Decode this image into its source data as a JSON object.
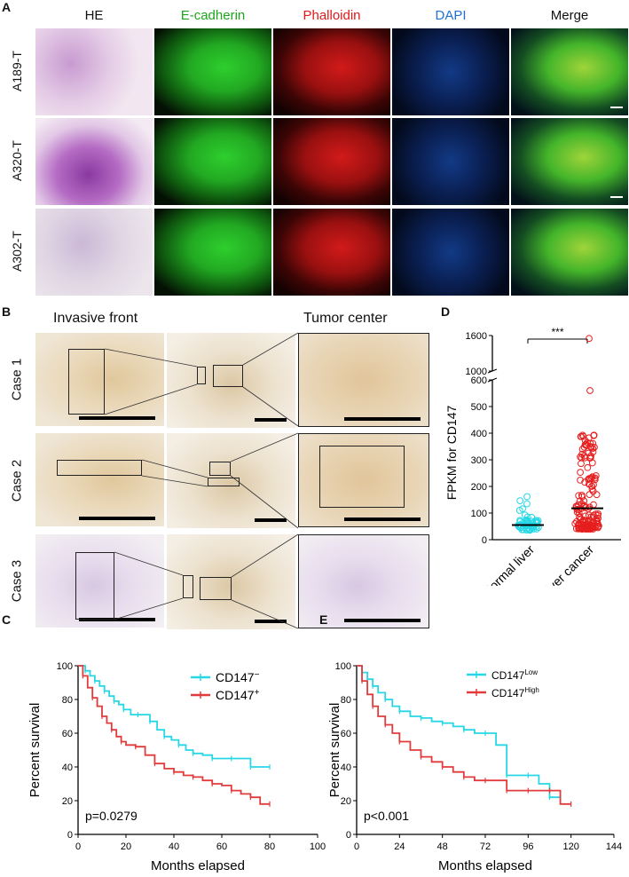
{
  "panels": {
    "A": "A",
    "B": "B",
    "C": "C",
    "D": "D",
    "E": "E"
  },
  "panelA": {
    "headers": [
      {
        "text": "HE",
        "color": "#111111"
      },
      {
        "text": "E-cadherin",
        "color": "#1aa51a"
      },
      {
        "text": "Phalloidin",
        "color": "#e01919"
      },
      {
        "text": "DAPI",
        "color": "#1f6fd6"
      },
      {
        "text": "Merge",
        "color": "#111111"
      }
    ],
    "rows": [
      "A189-T",
      "A320-T",
      "A302-T"
    ]
  },
  "panelB": {
    "col_invasive": "Invasive front",
    "col_center": "Tumor center",
    "rows": [
      "Case 1",
      "Case 2",
      "Case 3"
    ]
  },
  "chart_data": [
    {
      "panel": "D",
      "type": "scatter",
      "ylabel": "FPKM for CD147",
      "categories": [
        "Normal liver",
        "Liver cancer"
      ],
      "y_ticks_lower": [
        0,
        100,
        200,
        300,
        400,
        500,
        600
      ],
      "y_ticks_upper": [
        1000,
        1600
      ],
      "significance": "***",
      "series": [
        {
          "name": "Normal liver",
          "color": "#27d7e6",
          "median": 55,
          "range": [
            30,
            185
          ]
        },
        {
          "name": "Liver cancer",
          "color": "#e61e1e",
          "median": 118,
          "range": [
            20,
            1550
          ]
        }
      ]
    },
    {
      "panel": "C",
      "type": "line",
      "xlabel": "Months elapsed",
      "ylabel": "Percent survival",
      "xlim": [
        0,
        100
      ],
      "ylim": [
        0,
        100
      ],
      "x_ticks": [
        0,
        20,
        40,
        60,
        80,
        100
      ],
      "y_ticks": [
        0,
        20,
        40,
        60,
        80,
        100
      ],
      "annotation": "p=0.0279",
      "series": [
        {
          "name": "CD147",
          "sup": "−",
          "color": "#27d7e6",
          "x": [
            0,
            3,
            5,
            7,
            9,
            11,
            13,
            15,
            17,
            19,
            22,
            25,
            27,
            30,
            33,
            36,
            39,
            42,
            45,
            48,
            52,
            56,
            60,
            64,
            68,
            72,
            76,
            80
          ],
          "y": [
            100,
            97,
            94,
            91,
            88,
            85,
            82,
            79,
            77,
            74,
            71,
            71,
            71,
            67,
            62,
            58,
            56,
            53,
            50,
            48,
            47,
            45,
            45,
            45,
            45,
            40,
            40,
            40
          ]
        },
        {
          "name": "CD147",
          "sup": "+",
          "color": "#e23b3b",
          "x": [
            0,
            2,
            4,
            6,
            8,
            10,
            12,
            14,
            16,
            18,
            20,
            24,
            28,
            32,
            36,
            40,
            44,
            48,
            52,
            56,
            60,
            64,
            68,
            72,
            76,
            80
          ],
          "y": [
            100,
            94,
            87,
            81,
            76,
            70,
            66,
            62,
            58,
            55,
            53,
            52,
            47,
            42,
            39,
            37,
            35,
            34,
            32,
            30,
            29,
            26,
            24,
            22,
            18,
            18
          ]
        }
      ]
    },
    {
      "panel": "E",
      "type": "line",
      "xlabel": "Months elapsed",
      "ylabel": "Percent survival",
      "xlim": [
        0,
        144
      ],
      "ylim": [
        0,
        100
      ],
      "x_ticks": [
        0,
        24,
        48,
        72,
        96,
        120,
        144
      ],
      "y_ticks": [
        0,
        20,
        40,
        60,
        80,
        100
      ],
      "annotation": "p<0.001",
      "series": [
        {
          "name": "CD147",
          "sup": "Low",
          "color": "#27d7e6",
          "x": [
            0,
            3,
            6,
            9,
            12,
            16,
            20,
            24,
            30,
            36,
            42,
            48,
            54,
            60,
            66,
            72,
            78,
            84,
            90,
            96,
            102,
            108,
            114
          ],
          "y": [
            100,
            96,
            92,
            88,
            84,
            80,
            76,
            73,
            70,
            69,
            67,
            66,
            64,
            62,
            60,
            60,
            53,
            35,
            35,
            35,
            30,
            22,
            22
          ]
        },
        {
          "name": "CD147",
          "sup": "High",
          "color": "#e23b3b",
          "x": [
            0,
            3,
            6,
            9,
            12,
            16,
            20,
            24,
            30,
            36,
            42,
            48,
            54,
            60,
            66,
            72,
            78,
            84,
            90,
            96,
            102,
            108,
            114,
            120
          ],
          "y": [
            100,
            91,
            83,
            76,
            70,
            65,
            60,
            55,
            50,
            46,
            43,
            40,
            37,
            34,
            32,
            32,
            32,
            26,
            26,
            26,
            26,
            26,
            18,
            18
          ]
        }
      ]
    }
  ]
}
